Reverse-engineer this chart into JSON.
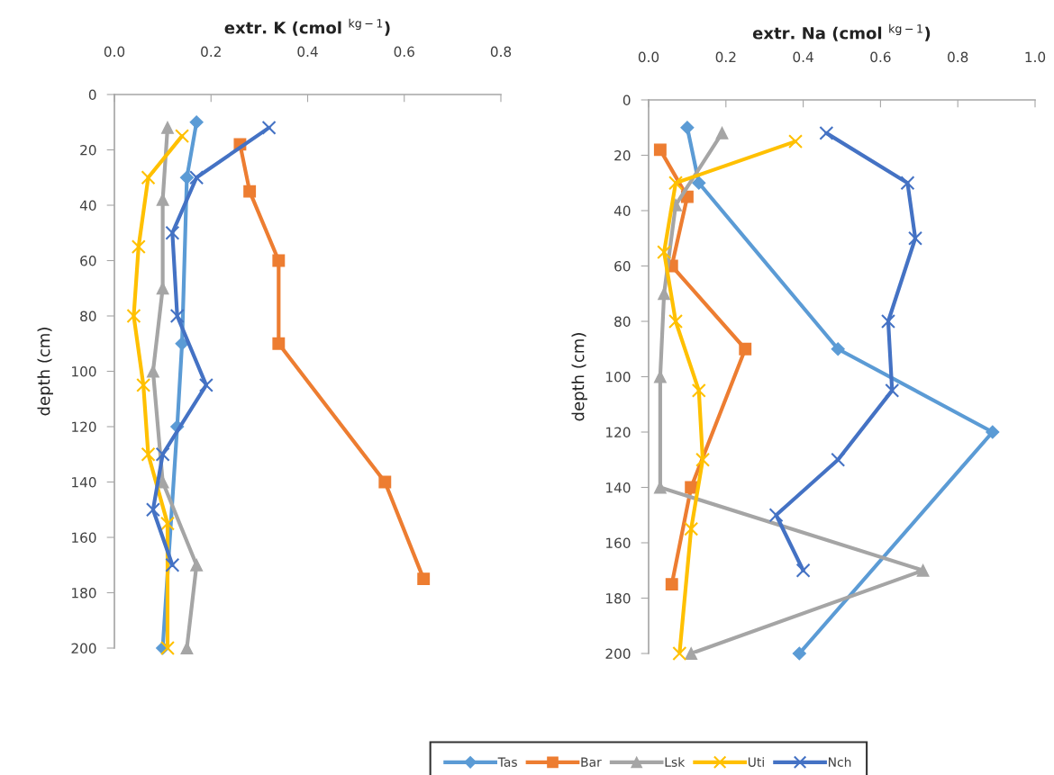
{
  "chart_data": [
    {
      "type": "line",
      "xlabel": "extr. K (cmol $^{kg−1}$)",
      "ylabel": "depth (cm)",
      "xlim": [
        0,
        0.8
      ],
      "xticks": [
        {
          "value": 0,
          "label": "0.0"
        },
        {
          "value": 0.2,
          "label": "0.2"
        },
        {
          "value": 0.4,
          "label": "0.4"
        },
        {
          "value": 0.6,
          "label": "0.6"
        },
        {
          "value": 0.8,
          "label": "0.8"
        }
      ],
      "ylim": [
        200,
        0
      ],
      "yticks": [
        0,
        20,
        40,
        60,
        80,
        100,
        120,
        140,
        160,
        180,
        200
      ],
      "grid": false,
      "legend": "bottom",
      "series": [
        {
          "name": "Tas",
          "color": "#5b9bd5",
          "marker": "diamond",
          "x": [
            0.17,
            0.15,
            0.14,
            0.13,
            0.1
          ],
          "values": [
            10,
            30,
            90,
            120,
            200
          ]
        },
        {
          "name": "Bar",
          "color": "#ed7d31",
          "marker": "square",
          "x": [
            0.26,
            0.28,
            0.34,
            0.34,
            0.56,
            0.64
          ],
          "values": [
            18,
            35,
            60,
            90,
            140,
            175
          ]
        },
        {
          "name": "Lsk",
          "color": "#a5a5a5",
          "marker": "triangle",
          "x": [
            0.11,
            0.1,
            0.1,
            0.08,
            0.1,
            0.17,
            0.15
          ],
          "values": [
            12,
            38,
            70,
            100,
            140,
            170,
            200
          ]
        },
        {
          "name": "Uti",
          "color": "#ffc000",
          "marker": "cross",
          "x": [
            0.14,
            0.07,
            0.05,
            0.04,
            0.06,
            0.07,
            0.11,
            0.11
          ],
          "values": [
            15,
            30,
            55,
            80,
            105,
            130,
            155,
            200
          ]
        },
        {
          "name": "Nch",
          "color": "#4472c4",
          "marker": "cross",
          "x": [
            0.32,
            0.17,
            0.12,
            0.13,
            0.19,
            0.1,
            0.08,
            0.12
          ],
          "values": [
            12,
            30,
            50,
            80,
            105,
            130,
            150,
            170
          ]
        }
      ]
    },
    {
      "type": "line",
      "xlabel": "extr. Na (cmol $^{kg−1}$)",
      "ylabel": "depth (cm)",
      "xlim": [
        0,
        1.0
      ],
      "xticks": [
        {
          "value": 0,
          "label": "0.0"
        },
        {
          "value": 0.2,
          "label": "0.2"
        },
        {
          "value": 0.4,
          "label": "0.4"
        },
        {
          "value": 0.6,
          "label": "0.6"
        },
        {
          "value": 0.8,
          "label": "0.8"
        },
        {
          "value": 1.0,
          "label": "1.0"
        }
      ],
      "ylim": [
        200,
        0
      ],
      "yticks": [
        0,
        20,
        40,
        60,
        80,
        100,
        120,
        140,
        160,
        180,
        200
      ],
      "grid": false,
      "legend": "bottom",
      "series": [
        {
          "name": "Tas",
          "color": "#5b9bd5",
          "marker": "diamond",
          "x": [
            0.1,
            0.13,
            0.49,
            0.89,
            0.39
          ],
          "values": [
            10,
            30,
            90,
            120,
            200
          ]
        },
        {
          "name": "Bar",
          "color": "#ed7d31",
          "marker": "square",
          "x": [
            0.03,
            0.1,
            0.06,
            0.25,
            0.11,
            0.06
          ],
          "values": [
            18,
            35,
            60,
            90,
            140,
            175
          ]
        },
        {
          "name": "Lsk",
          "color": "#a5a5a5",
          "marker": "triangle",
          "x": [
            0.19,
            0.07,
            0.04,
            0.03,
            0.03,
            0.71,
            0.11
          ],
          "values": [
            12,
            38,
            70,
            100,
            140,
            170,
            200
          ]
        },
        {
          "name": "Uti",
          "color": "#ffc000",
          "marker": "cross",
          "x": [
            0.38,
            0.07,
            0.04,
            0.07,
            0.13,
            0.14,
            0.11,
            0.08
          ],
          "values": [
            15,
            30,
            55,
            80,
            105,
            130,
            155,
            200
          ]
        },
        {
          "name": "Nch",
          "color": "#4472c4",
          "marker": "cross",
          "x": [
            0.46,
            0.67,
            0.69,
            0.62,
            0.63,
            0.49,
            0.33,
            0.4
          ],
          "values": [
            12,
            30,
            50,
            80,
            105,
            130,
            150,
            170
          ]
        }
      ]
    }
  ]
}
